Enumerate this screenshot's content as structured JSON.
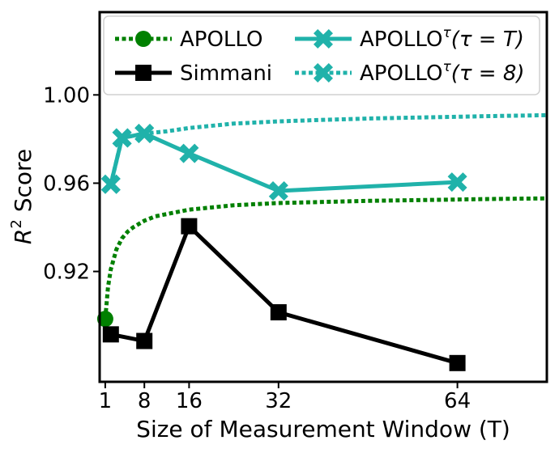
{
  "chart_data": {
    "type": "line",
    "title": "",
    "xlabel": "Size of Measurement Window (T)",
    "ylabel_parts": {
      "base": "R",
      "sup": "2",
      "rest": " Score"
    },
    "xlim": [
      0,
      80
    ],
    "ylim": [
      0.87,
      1.0375
    ],
    "xticks": [
      1,
      8,
      16,
      32,
      64
    ],
    "yticks": [
      0.92,
      0.96,
      1.0
    ],
    "ytick_labels": [
      "0.92",
      "0.96",
      "1.00"
    ],
    "legend_position": "top",
    "series": [
      {
        "name": "APOLLO",
        "legend": {
          "main": "APOLLO",
          "sup": "",
          "tail": ""
        },
        "style": "dotted",
        "color": "#008000",
        "marker": "circle",
        "marker_points": [
          [
            1,
            0.8985
          ]
        ],
        "x": [
          1,
          1.5,
          2,
          3,
          4,
          5,
          6,
          8,
          10,
          12,
          16,
          20,
          24,
          32,
          40,
          48,
          56,
          64,
          72,
          80
        ],
        "y": [
          0.8985,
          0.913,
          0.921,
          0.93,
          0.935,
          0.938,
          0.94,
          0.943,
          0.945,
          0.946,
          0.948,
          0.949,
          0.95,
          0.951,
          0.9515,
          0.952,
          0.9523,
          0.9526,
          0.9529,
          0.9531
        ]
      },
      {
        "name": "Simmani",
        "legend": {
          "main": "Simmani",
          "sup": "",
          "tail": ""
        },
        "style": "solid",
        "color": "#000000",
        "marker": "square",
        "x": [
          2,
          8,
          16,
          32,
          64
        ],
        "y": [
          0.8915,
          0.8885,
          0.9405,
          0.9015,
          0.8785
        ]
      },
      {
        "name": "APOLLO tau = T",
        "legend": {
          "main": "APOLLO",
          "sup": "τ",
          "tail": "(τ = T)"
        },
        "style": "solid",
        "color": "#20b2aa",
        "marker": "x",
        "x": [
          2,
          4,
          8,
          16,
          32,
          64
        ],
        "y": [
          0.9595,
          0.9805,
          0.9825,
          0.9735,
          0.9565,
          0.9605
        ]
      },
      {
        "name": "APOLLO tau = 8",
        "legend": {
          "main": "APOLLO",
          "sup": "τ",
          "tail": "(τ = 8)"
        },
        "style": "dotted",
        "color": "#20b2aa",
        "marker": "x",
        "marker_points": [
          [
            2,
            0.9595
          ],
          [
            4,
            0.9805
          ],
          [
            8,
            0.9825
          ]
        ],
        "x": [
          2,
          4,
          8,
          12,
          16,
          24,
          32,
          40,
          48,
          56,
          64,
          72,
          80
        ],
        "y": [
          0.9595,
          0.9805,
          0.9825,
          0.9835,
          0.985,
          0.987,
          0.988,
          0.9887,
          0.9893,
          0.9897,
          0.9901,
          0.9905,
          0.9908
        ]
      }
    ]
  }
}
